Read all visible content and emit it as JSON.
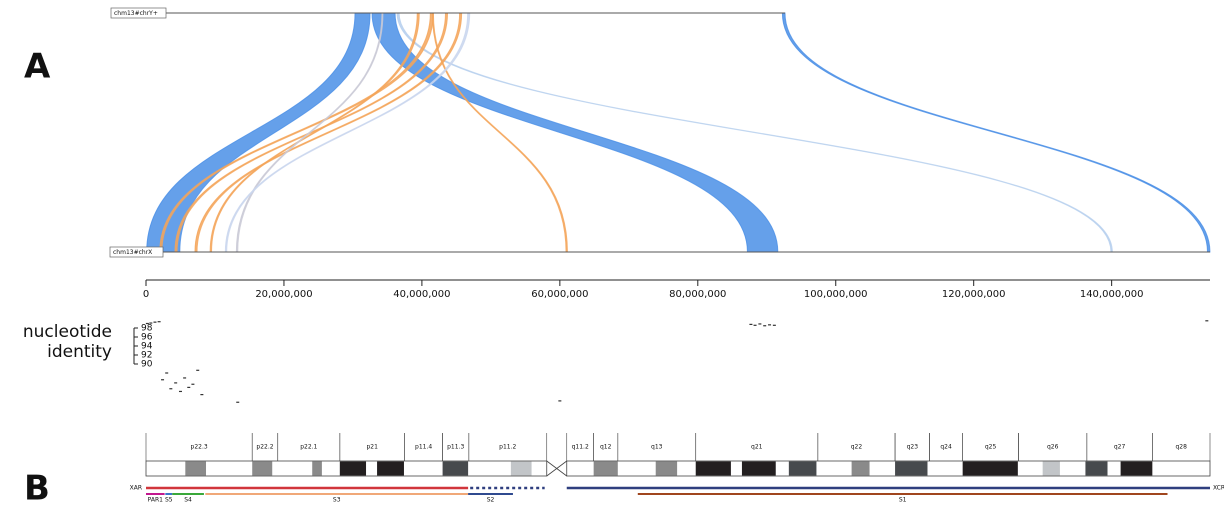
{
  "panel_labels": [
    "A",
    "B"
  ],
  "chart_data": [
    {
      "type": "synteny",
      "top_label": "chm13#chrY+",
      "bottom_label": "chm13#chrX",
      "top_lim": [
        0,
        62460029
      ],
      "xlim": [
        0,
        154259566
      ],
      "xticks": [
        0,
        {
          "value": 20000000,
          "label": "20,000,000"
        },
        {
          "value": 40000000,
          "label": "40,000,000"
        },
        {
          "value": 60000000,
          "label": "60,000,000"
        },
        {
          "value": 80000000,
          "label": "80,000,000"
        },
        {
          "value": 100000000,
          "label": "100,000,000"
        },
        {
          "value": 120000000,
          "label": "120,000,000"
        },
        {
          "value": 140000000,
          "label": "140,000,000"
        }
      ],
      "alignments": [
        {
          "color": "#4a8fe6",
          "x_range": [
            100000,
            4900000
          ],
          "top_range": [
            19830000,
            21320000
          ]
        },
        {
          "color": "#4a8fe6",
          "x_range": [
            87200000,
            91600000
          ],
          "top_range": [
            21520000,
            23800000
          ]
        },
        {
          "color": "#4a8fe6",
          "x_range": [
            153900000,
            154250000
          ],
          "top_range": [
            62200000,
            62460000
          ]
        },
        {
          "color": "#b7cfee",
          "x_range": [
            139900000,
            140100000
          ],
          "top_range": [
            24000000,
            24200000
          ]
        },
        {
          "color": "#f4a55a",
          "x_range": [
            2000000,
            2300000
          ],
          "top_range": [
            27300000,
            27600000
          ]
        },
        {
          "color": "#f4a55a",
          "x_range": [
            4200000,
            4500000
          ],
          "top_range": [
            28800000,
            29000000
          ]
        },
        {
          "color": "#f4a55a",
          "x_range": [
            7100000,
            7400000
          ],
          "top_range": [
            30200000,
            30400000
          ]
        },
        {
          "color": "#f4a55a",
          "x_range": [
            9300000,
            9500000
          ],
          "top_range": [
            26000000,
            26200000
          ]
        },
        {
          "color": "#f4a55a",
          "x_range": [
            60900000,
            61100000
          ],
          "top_range": [
            27500000,
            27600000
          ]
        },
        {
          "color": "#c9c9d6",
          "x_range": [
            13100000,
            13300000
          ],
          "top_range": [
            22500000,
            22600000
          ]
        },
        {
          "color": "#c9d6ee",
          "x_range": [
            11500000,
            11700000
          ],
          "top_range": [
            31000000,
            31200000
          ]
        }
      ]
    },
    {
      "type": "scatter",
      "ylabel": "nucleotide identity",
      "color": "#333333",
      "ylim": [
        80,
        100
      ],
      "yticks": [
        90,
        92,
        94,
        96,
        98
      ],
      "x": [
        200000,
        700000,
        1300000,
        1900000,
        2400000,
        3000000,
        3600000,
        4300000,
        5000000,
        5600000,
        6200000,
        6800000,
        7500000,
        8100000,
        13300000,
        60000000,
        87700000,
        88300000,
        89000000,
        89700000,
        90400000,
        91100000,
        153800000
      ],
      "y": [
        99.0,
        99.1,
        99.3,
        99.4,
        86.5,
        88.0,
        84.5,
        85.8,
        83.9,
        86.9,
        84.8,
        85.5,
        88.6,
        83.2,
        81.5,
        81.8,
        98.8,
        98.6,
        98.9,
        98.5,
        98.7,
        98.6,
        99.6
      ]
    },
    {
      "type": "ideogram",
      "bands": [
        {
          "name": "p22.3",
          "start": 0,
          "end": 15400000
        },
        {
          "name": "p22.2",
          "start": 15400000,
          "end": 19100000
        },
        {
          "name": "p22.1",
          "start": 19100000,
          "end": 28100000
        },
        {
          "name": "p21",
          "start": 28100000,
          "end": 37500000
        },
        {
          "name": "p11.4",
          "start": 37500000,
          "end": 43000000
        },
        {
          "name": "p11.3",
          "start": 43000000,
          "end": 46800000
        },
        {
          "name": "p11.2",
          "start": 46800000,
          "end": 58100000
        },
        {
          "name": "q11.2",
          "start": 61000000,
          "end": 64900000
        },
        {
          "name": "q12",
          "start": 64900000,
          "end": 68400000
        },
        {
          "name": "q13",
          "start": 68400000,
          "end": 79700000
        },
        {
          "name": "q21",
          "start": 79700000,
          "end": 97400000
        },
        {
          "name": "q22",
          "start": 97400000,
          "end": 108600000
        },
        {
          "name": "q23",
          "start": 108600000,
          "end": 113600000
        },
        {
          "name": "q24",
          "start": 113600000,
          "end": 118400000
        },
        {
          "name": "q25",
          "start": 118400000,
          "end": 126500000
        },
        {
          "name": "q26",
          "start": 126500000,
          "end": 136400000
        },
        {
          "name": "q27",
          "start": 136400000,
          "end": 145900000
        },
        {
          "name": "q28",
          "start": 145900000,
          "end": 154259566
        }
      ],
      "centromere": [
        58100000,
        61000000
      ],
      "stains": [
        {
          "start": 5700000,
          "end": 8700000,
          "color": "#8a8a8a"
        },
        {
          "start": 15400000,
          "end": 18300000,
          "color": "#8a8a8a"
        },
        {
          "start": 24100000,
          "end": 25500000,
          "color": "#8a8a8a"
        },
        {
          "start": 28100000,
          "end": 31900000,
          "color": "#231f20"
        },
        {
          "start": 33500000,
          "end": 37400000,
          "color": "#231f20"
        },
        {
          "start": 43000000,
          "end": 46700000,
          "color": "#474a4d"
        },
        {
          "start": 52900000,
          "end": 55900000,
          "color": "#c2c5c8"
        },
        {
          "start": 64900000,
          "end": 68400000,
          "color": "#8a8a8a"
        },
        {
          "start": 73900000,
          "end": 77000000,
          "color": "#8a8a8a"
        },
        {
          "start": 79700000,
          "end": 84800000,
          "color": "#231f20"
        },
        {
          "start": 86400000,
          "end": 91300000,
          "color": "#231f20"
        },
        {
          "start": 93200000,
          "end": 97200000,
          "color": "#474a4d"
        },
        {
          "start": 102300000,
          "end": 104900000,
          "color": "#8a8a8a"
        },
        {
          "start": 108600000,
          "end": 113300000,
          "color": "#474a4d"
        },
        {
          "start": 118400000,
          "end": 126400000,
          "color": "#231f20"
        },
        {
          "start": 130000000,
          "end": 132500000,
          "color": "#c2c5c8"
        },
        {
          "start": 136200000,
          "end": 139400000,
          "color": "#474a4d"
        },
        {
          "start": 141300000,
          "end": 145900000,
          "color": "#231f20"
        }
      ],
      "regions": [
        {
          "name": "XAR",
          "start": 0,
          "end": 46700000,
          "color": "#d1363c"
        },
        {
          "start": 47000000,
          "end": 57800000,
          "color": "#2f3f7f",
          "dotted": true
        },
        {
          "name": "XCR",
          "start": 61000000,
          "end": 154259566,
          "color": "#2f3f7f"
        }
      ],
      "strata": [
        {
          "name": "PAR1",
          "start": 0,
          "end": 2700000,
          "color": "#c2188f"
        },
        {
          "name": "S5",
          "start": 2800000,
          "end": 3800000,
          "color": "#3b73c9"
        },
        {
          "name": "S4",
          "start": 3800000,
          "end": 8400000,
          "color": "#3aa83a"
        },
        {
          "name": "S3",
          "start": 8600000,
          "end": 46700000,
          "color": "#f0a878"
        },
        {
          "name": "S2",
          "start": 46700000,
          "end": 53200000,
          "color": "#2f4a8f"
        },
        {
          "name": "S1",
          "start": 71300000,
          "end": 148100000,
          "color": "#a0461e"
        }
      ]
    }
  ]
}
